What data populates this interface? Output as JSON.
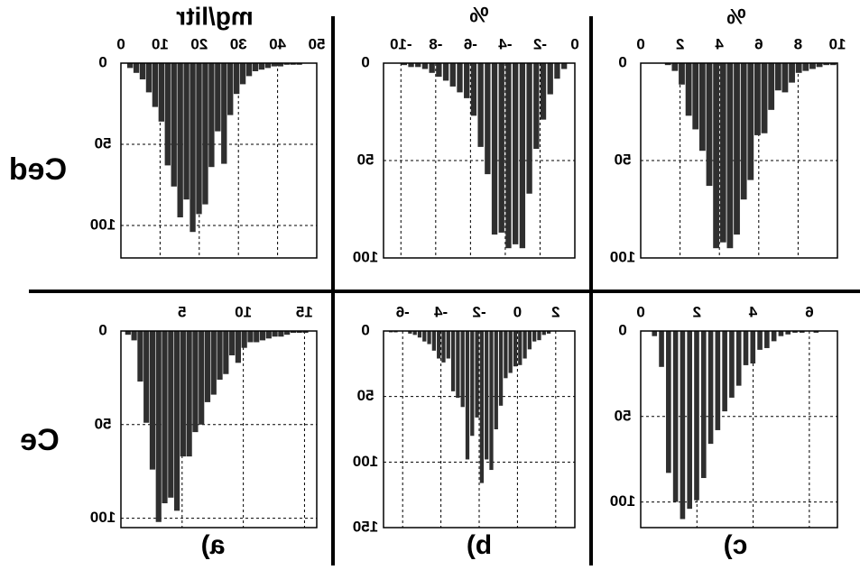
{
  "row_labels": [
    "Ced",
    "Ce"
  ],
  "col_labels": [
    "a)",
    "b)",
    "c)"
  ],
  "panel_titles": {
    "a_top": "mg/litr",
    "b_top": "%",
    "c_top": "%"
  },
  "colors": {
    "bar": "#2f2f2f",
    "axis": "#000000",
    "grid": "#000000",
    "background": "#ffffff"
  },
  "chart_data": [
    {
      "id": "Ced-a",
      "type": "bar",
      "row": "Ced",
      "column": "a)",
      "title": "mg/litr",
      "x_ticks": [
        0,
        10,
        20,
        30,
        40,
        50
      ],
      "xlim": [
        0,
        50
      ],
      "y_ticks": [
        0,
        50,
        100
      ],
      "ylim": [
        0,
        120
      ],
      "grid": true,
      "bar_width": 1.6,
      "x": [
        2.4,
        4,
        5.6,
        7.2,
        8.8,
        10.4,
        12,
        13.6,
        15.2,
        16.8,
        18.4,
        20,
        21.6,
        23.2,
        24.8,
        26.4,
        28,
        29.6,
        31.2,
        32.8,
        34.4,
        36,
        37.6,
        39.2,
        40.8,
        42.4,
        44,
        45.6,
        47.2
      ],
      "values": [
        3,
        6,
        10,
        18,
        27,
        36,
        63,
        76,
        95,
        84,
        104,
        93,
        87,
        64,
        42,
        62,
        32,
        19,
        13,
        8,
        5,
        4,
        3,
        2,
        2,
        1,
        1,
        1,
        0
      ]
    },
    {
      "id": "Ced-b",
      "type": "bar",
      "row": "Ced",
      "column": "b)",
      "title": "%",
      "x_ticks": [
        -10,
        -8,
        -6,
        -4,
        -2,
        0
      ],
      "xlim": [
        -11,
        0
      ],
      "y_ticks": [
        0,
        50,
        100
      ],
      "ylim": [
        0,
        100
      ],
      "grid": true,
      "bar_width": 0.36,
      "x": [
        -10.6,
        -10.2,
        -9.8,
        -9.4,
        -9.0,
        -8.6,
        -8.2,
        -7.8,
        -7.4,
        -7.0,
        -6.6,
        -6.2,
        -5.8,
        -5.4,
        -5.0,
        -4.6,
        -4.2,
        -3.8,
        -3.4,
        -3.0,
        -2.6,
        -2.2,
        -1.8,
        -1.4,
        -1.0,
        -0.6
      ],
      "values": [
        0,
        0,
        1,
        2,
        2,
        3,
        5,
        7,
        9,
        12,
        15,
        18,
        27,
        43,
        57,
        88,
        87,
        95,
        93,
        95,
        67,
        44,
        29,
        16,
        8,
        3
      ]
    },
    {
      "id": "Ced-c",
      "type": "bar",
      "row": "Ced",
      "column": "c)",
      "title": "%",
      "x_ticks": [
        0,
        2,
        4,
        6,
        8,
        10
      ],
      "xlim": [
        0,
        10
      ],
      "y_ticks": [
        0,
        50,
        100
      ],
      "ylim": [
        0,
        100
      ],
      "grid": true,
      "bar_width": 0.34,
      "x": [
        1.4,
        1.75,
        2.1,
        2.45,
        2.8,
        3.15,
        3.5,
        3.85,
        4.2,
        4.55,
        4.9,
        5.25,
        5.6,
        5.95,
        6.3,
        6.65,
        7.0,
        7.35,
        7.7,
        8.05,
        8.4,
        8.75,
        9.1,
        9.45,
        9.8
      ],
      "values": [
        1,
        4,
        11,
        27,
        34,
        45,
        63,
        95,
        92,
        95,
        88,
        70,
        60,
        37,
        36,
        24,
        14,
        15,
        10,
        5,
        4,
        3,
        2,
        1,
        1
      ]
    },
    {
      "id": "Ce-a",
      "type": "bar",
      "row": "Ce",
      "column": "a)",
      "title": "",
      "x_ticks": [
        5,
        10,
        15
      ],
      "xlim": [
        0,
        16
      ],
      "y_ticks": [
        0,
        50,
        100
      ],
      "ylim": [
        0,
        105
      ],
      "grid": true,
      "bar_width": 0.5,
      "x": [
        0.6,
        1.1,
        1.6,
        2.1,
        2.6,
        3.1,
        3.6,
        4.1,
        4.6,
        5.1,
        5.6,
        6.1,
        6.6,
        7.1,
        7.6,
        8.1,
        8.6,
        9.1,
        9.6,
        10.1,
        10.6,
        11.1,
        11.6,
        12.1,
        12.6,
        13.1,
        13.6,
        14.1,
        14.6,
        15.1,
        15.6
      ],
      "values": [
        2,
        5,
        27,
        49,
        74,
        102,
        92,
        89,
        96,
        67,
        67,
        54,
        50,
        38,
        34,
        26,
        23,
        13,
        17,
        9,
        6,
        6,
        5,
        4,
        3,
        3,
        2,
        1,
        1,
        1,
        0
      ]
    },
    {
      "id": "Ce-b",
      "type": "bar",
      "row": "Ce",
      "column": "b)",
      "title": "",
      "x_ticks": [
        -6,
        -4,
        -2,
        0,
        2
      ],
      "xlim": [
        -7,
        3
      ],
      "y_ticks": [
        0,
        50,
        100,
        150
      ],
      "ylim": [
        0,
        150
      ],
      "grid": true,
      "bar_width": 0.23,
      "x": [
        -6.6,
        -6.35,
        -5.6,
        -5.35,
        -5.1,
        -4.85,
        -4.6,
        -4.35,
        -4.1,
        -3.85,
        -3.6,
        -3.35,
        -3.1,
        -2.85,
        -2.6,
        -2.35,
        -2.1,
        -1.85,
        -1.6,
        -1.35,
        -1.1,
        -0.85,
        -0.6,
        -0.35,
        -0.1,
        0.15,
        0.4,
        0.65,
        0.9,
        1.15,
        1.4,
        1.65
      ],
      "values": [
        1,
        1,
        2,
        3,
        5,
        8,
        10,
        15,
        21,
        24,
        21,
        46,
        51,
        58,
        98,
        80,
        66,
        116,
        98,
        106,
        75,
        57,
        36,
        32,
        27,
        26,
        21,
        14,
        8,
        7,
        3,
        2
      ]
    },
    {
      "id": "Ce-c",
      "type": "bar",
      "row": "Ce",
      "column": "c)",
      "title": "",
      "x_ticks": [
        0,
        2,
        4,
        6
      ],
      "xlim": [
        0,
        7
      ],
      "y_ticks": [
        0,
        50,
        100
      ],
      "ylim": [
        0,
        115
      ],
      "grid": true,
      "bar_width": 0.2,
      "x": [
        0.5,
        0.75,
        1.0,
        1.25,
        1.5,
        1.75,
        2.0,
        2.25,
        2.5,
        2.75,
        3.0,
        3.25,
        3.5,
        3.75,
        4.0,
        4.25,
        4.5,
        4.75,
        5.0,
        5.25,
        5.5,
        5.75,
        6.0,
        6.25,
        6.5,
        6.75
      ],
      "values": [
        3,
        21,
        83,
        100,
        110,
        104,
        99,
        86,
        66,
        58,
        47,
        39,
        32,
        20,
        19,
        11,
        10,
        6,
        3,
        2,
        1,
        1,
        0,
        1,
        0,
        0
      ]
    }
  ]
}
